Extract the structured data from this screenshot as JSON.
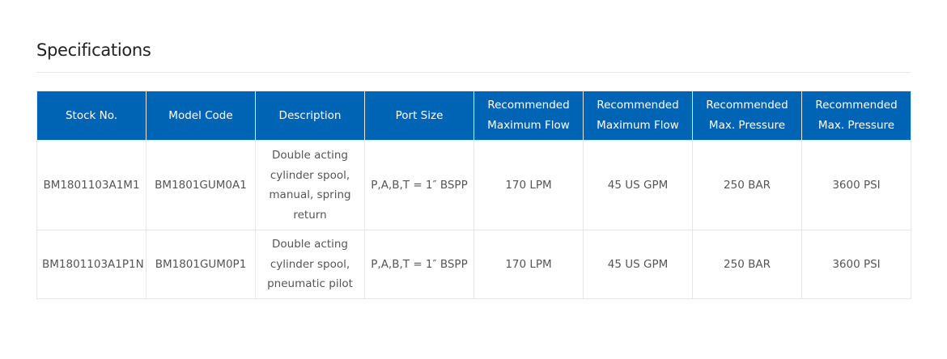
{
  "title": "Specifications",
  "accent_color": "#0064b4",
  "table": {
    "headers": [
      "Stock No.",
      "Model Code",
      "Description",
      "Port Size",
      "Recommended Maximum Flow",
      "Recommended Maximum Flow",
      "Recommended Max. Pressure",
      "Recommended Max. Pressure"
    ],
    "rows": [
      [
        "BM1801103A1M1",
        "BM1801GUM0A1",
        "Double acting cylinder spool, manual, spring return",
        "P,A,B,T = 1″ BSPP",
        "170 LPM",
        "45 US GPM",
        "250 BAR",
        "3600 PSI"
      ],
      [
        "BM1801103A1P1N",
        "BM1801GUM0P1",
        "Double acting cylinder spool, pneumatic pilot",
        "P,A,B,T = 1″ BSPP",
        "170 LPM",
        "45 US GPM",
        "250 BAR",
        "3600 PSI"
      ]
    ]
  }
}
